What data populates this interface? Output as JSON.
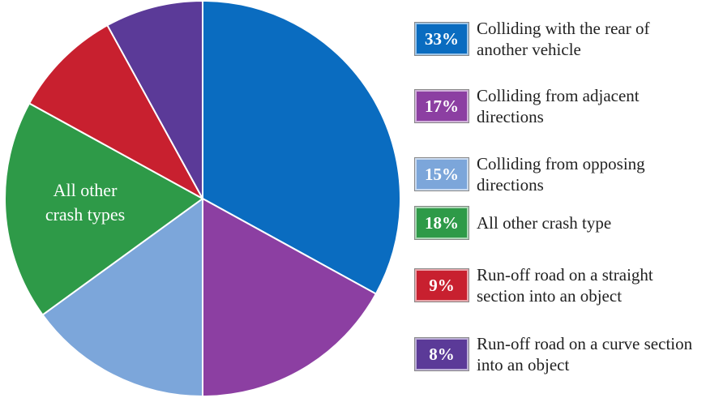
{
  "chart_data": {
    "type": "pie",
    "categories": [
      "Colliding with the rear of another vehicle",
      "Colliding from adjacent directions",
      "Colliding from opposing directions",
      "All other crash type",
      "Run-off road on a straight section into an object",
      "Run-off road on a curve section into an object"
    ],
    "values": [
      33,
      17,
      15,
      18,
      9,
      8
    ],
    "value_labels": [
      "33%",
      "17%",
      "15%",
      "18%",
      "9%",
      "8%"
    ],
    "colors": [
      "#0a6cc0",
      "#8c3fa2",
      "#7ca6da",
      "#2e9a48",
      "#c8202f",
      "#5b3a98"
    ],
    "annotation": "All other crash types"
  }
}
